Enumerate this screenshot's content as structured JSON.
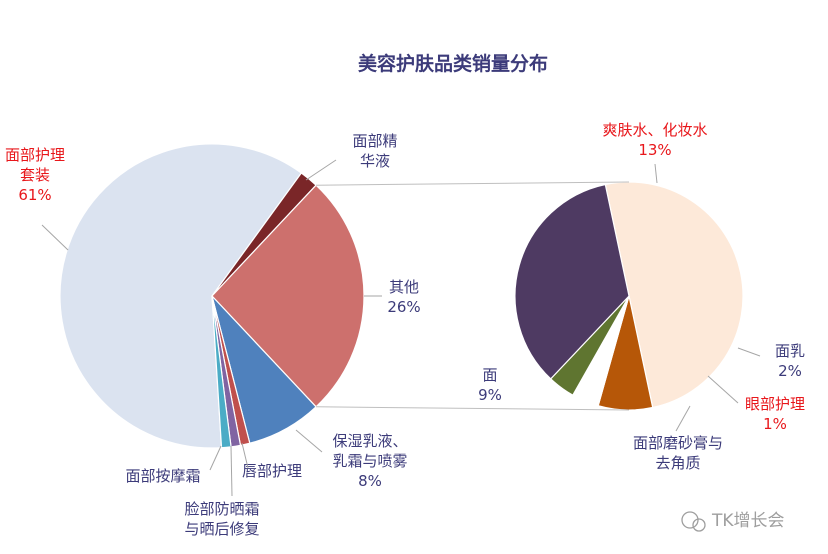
{
  "chart_data": {
    "type": "pie",
    "subtype": "pie-of-pie",
    "title": "美容护肤品类销量分布",
    "main_pie": {
      "slices": [
        {
          "label": "面部护理套装",
          "value": 61,
          "value_label": "61%",
          "color": "#dbe3f0",
          "label_color": "#e8171b"
        },
        {
          "label": "面部精华液",
          "value": 2,
          "value_label": "",
          "color": "#7a2628",
          "label_color": "#3c3b7a"
        },
        {
          "label": "其他",
          "value": 26,
          "value_label": "26%",
          "color": "#cd706d",
          "label_color": "#3c3b7a"
        },
        {
          "label": "保湿乳液、乳霜与喷雾",
          "value": 8,
          "value_label": "8%",
          "color": "#4f81bd",
          "label_color": "#3c3b7a"
        },
        {
          "label": "唇部护理",
          "value": 1,
          "value_label": "",
          "color": "#c0504d",
          "label_color": "#3c3b7a"
        },
        {
          "label": "脸部防晒霜与晒后修复",
          "value": 1,
          "value_label": "",
          "color": "#8064a2",
          "label_color": "#3c3b7a"
        },
        {
          "label": "面部按摩霜",
          "value": 1,
          "value_label": "",
          "color": "#4bacc6",
          "label_color": "#3c3b7a"
        }
      ]
    },
    "secondary_pie": {
      "parent": "其他",
      "slices": [
        {
          "label": "爽肤水、化妆水",
          "value": 13,
          "value_label": "13%",
          "color": "#fde9d9",
          "label_color": "#e8171b"
        },
        {
          "label": "面乳",
          "value": 2,
          "value_label": "2%",
          "color": "#b65708",
          "label_color": "#3c3b7a"
        },
        {
          "label": "眼部护理",
          "value": 1,
          "value_label": "1%",
          "color": "#ffffff",
          "label_color": "#e8171b"
        },
        {
          "label": "面部磨砂膏与去角质",
          "value": 1,
          "value_label": "",
          "color": "#5f7530",
          "label_color": "#3c3b7a"
        },
        {
          "label": "面",
          "value": 9,
          "value_label": "9%",
          "color": "#4e3a62",
          "label_color": "#3c3b7a"
        }
      ]
    },
    "legend": "none"
  },
  "watermark": {
    "text": "TK增长会",
    "icon": "wechat-icon"
  },
  "colors": {
    "title": "#3c3b7a",
    "connector": "#bfbfbf",
    "leader": "#a6a6a6"
  }
}
